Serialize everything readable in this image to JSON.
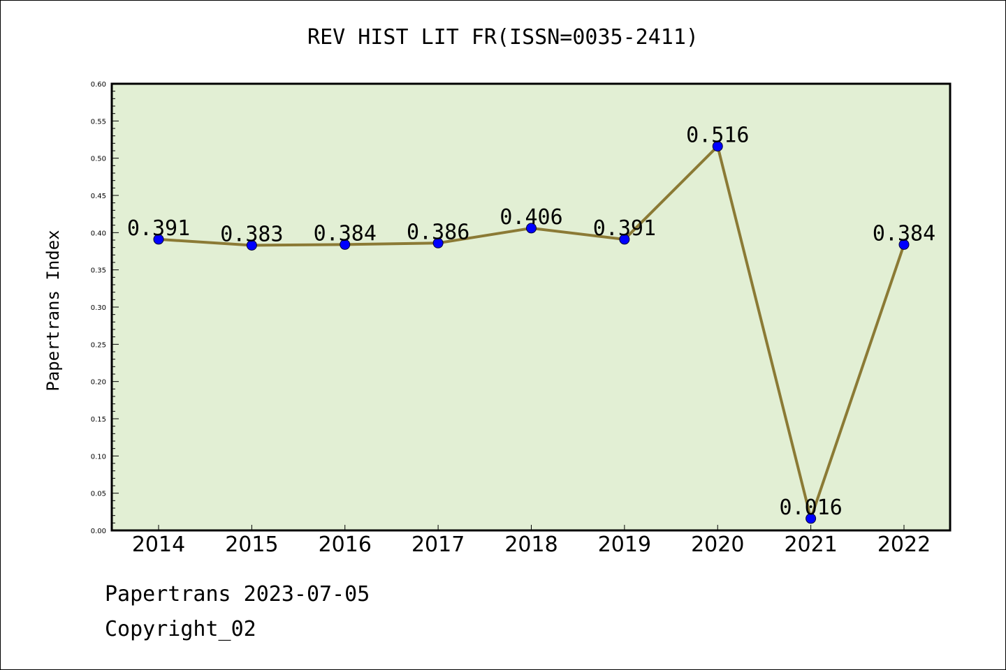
{
  "title": "REV HIST LIT FR(ISSN=0035-2411)",
  "footer": {
    "line1": "Papertrans 2023-07-05",
    "line2": "Copyright_02"
  },
  "colors": {
    "plot_background": "#e2efd4",
    "line": "#8b7a35",
    "marker": "#0000ff"
  },
  "chart_data": {
    "type": "line",
    "title": "REV HIST LIT FR(ISSN=0035-2411)",
    "xlabel": "",
    "ylabel": "Papertrans Index",
    "categories": [
      "2014",
      "2015",
      "2016",
      "2017",
      "2018",
      "2019",
      "2020",
      "2021",
      "2022"
    ],
    "values": [
      0.391,
      0.383,
      0.384,
      0.386,
      0.406,
      0.391,
      0.516,
      0.016,
      0.384
    ],
    "data_labels": [
      "0.391",
      "0.383",
      "0.384",
      "0.386",
      "0.406",
      "0.391",
      "0.516",
      "0.016",
      "0.384"
    ],
    "ylim": [
      0,
      0.6
    ],
    "yticks": [
      "0.00",
      "0.05",
      "0.10",
      "0.15",
      "0.20",
      "0.25",
      "0.30",
      "0.35",
      "0.40",
      "0.45",
      "0.50",
      "0.55",
      "0.60"
    ],
    "grid": false,
    "legend": "none"
  }
}
